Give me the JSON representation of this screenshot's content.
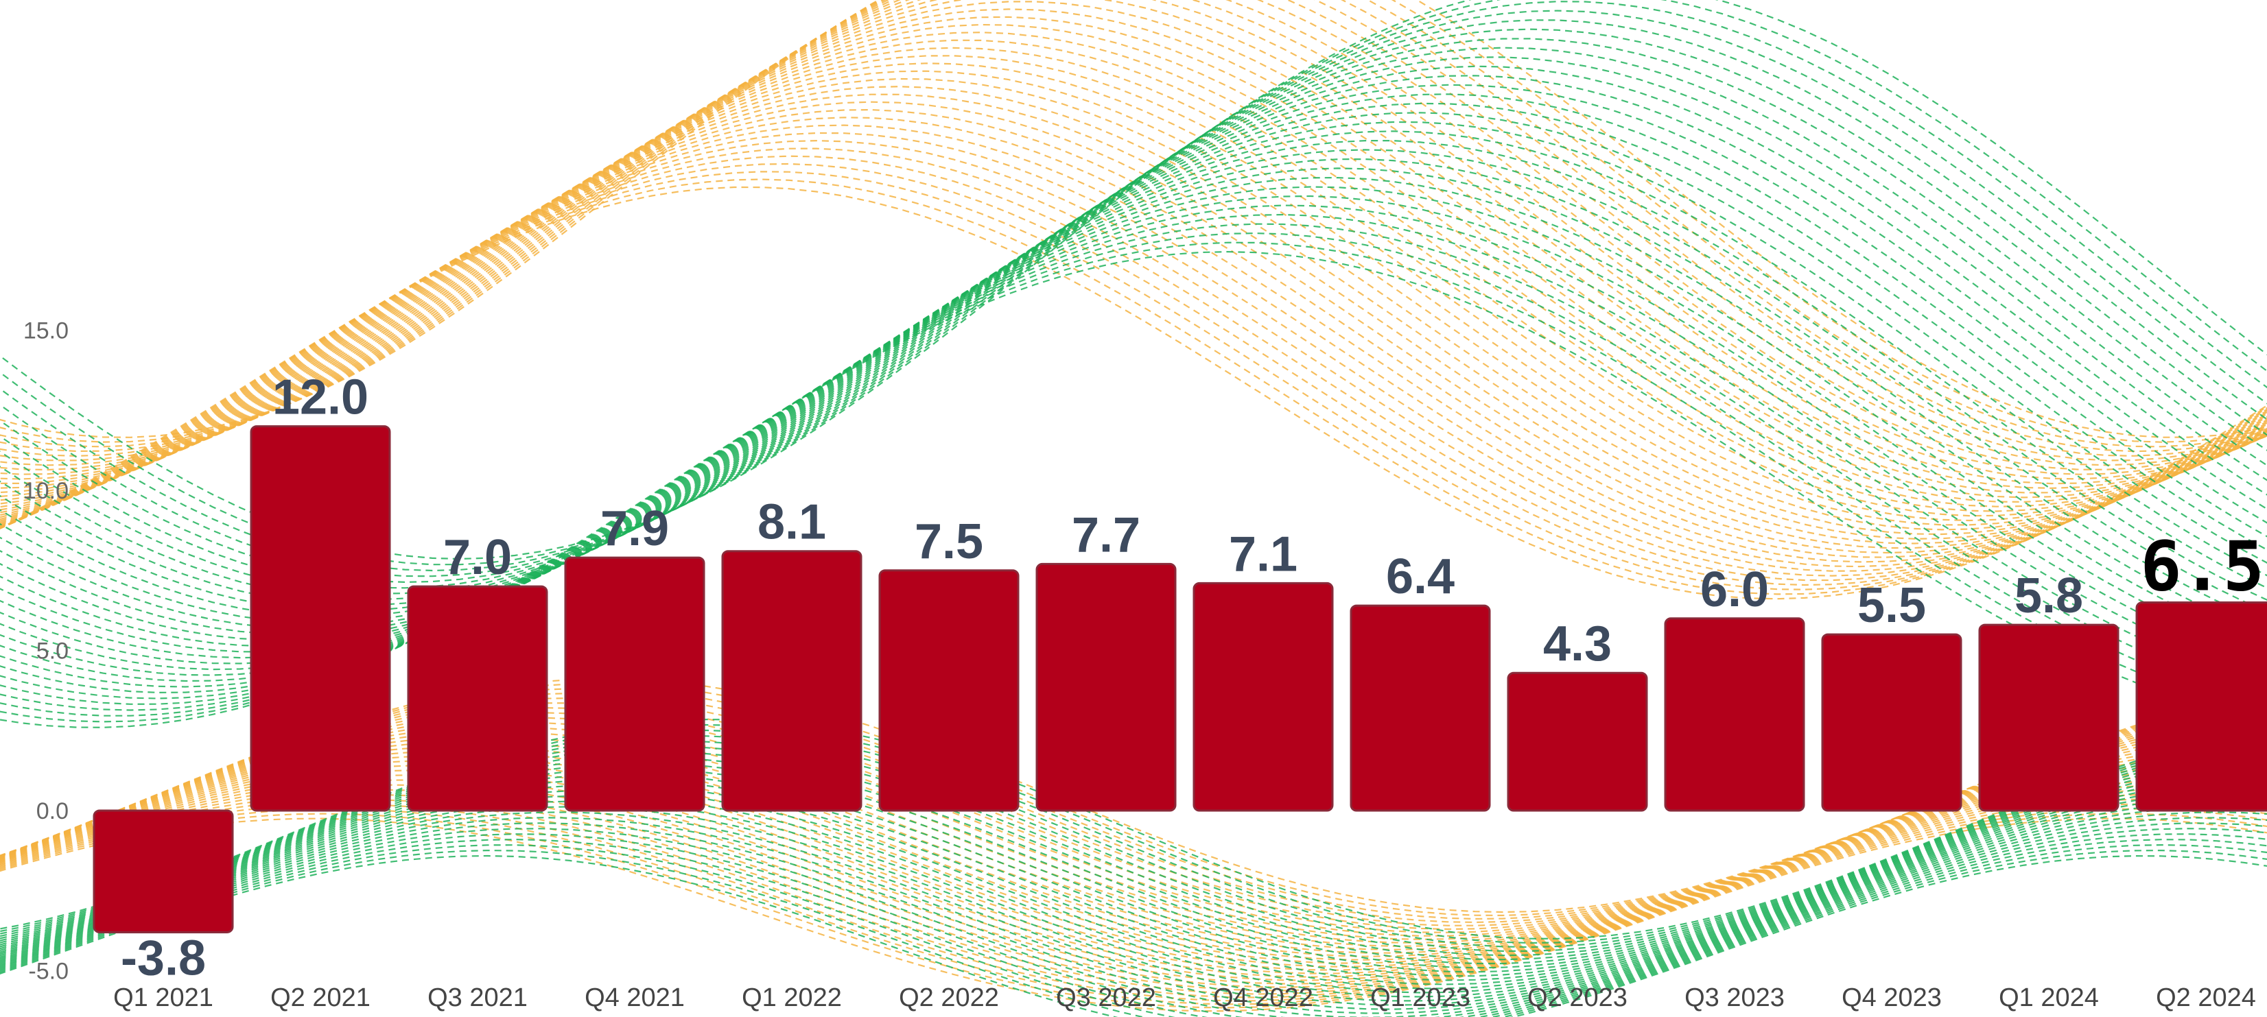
{
  "chart_data": {
    "type": "bar",
    "categories": [
      "Q1 2021",
      "Q2 2021",
      "Q3 2021",
      "Q4 2021",
      "Q1 2022",
      "Q2 2022",
      "Q3 2022",
      "Q4 2022",
      "Q1 2023",
      "Q2 2023",
      "Q3 2023",
      "Q4 2023",
      "Q1 2024",
      "Q2 2024"
    ],
    "values": [
      -3.8,
      12.0,
      7.0,
      7.9,
      8.1,
      7.5,
      7.7,
      7.1,
      6.4,
      4.3,
      6.0,
      5.5,
      5.8,
      6.5
    ],
    "value_labels": [
      "-3.8",
      "12.0",
      "7.0",
      "7.9",
      "8.1",
      "7.5",
      "7.7",
      "7.1",
      "6.4",
      "4.3",
      "6.0",
      "5.5",
      "5.8",
      "6.5"
    ],
    "yticks": [
      "15.0",
      "10.0",
      "5.0",
      "0.0",
      "-5.0"
    ],
    "ytick_values": [
      15,
      10,
      5,
      0,
      -5
    ],
    "ylim": [
      -5,
      15
    ],
    "title": "",
    "xlabel": "",
    "ylabel": "",
    "grid": false,
    "legend": "none",
    "colors": {
      "bar": "#b3001b",
      "bar_border": "#8a2a3a",
      "value_label": "#3d4a5e",
      "tick_label": "#666666",
      "wave_orange": "#f5b342",
      "wave_green": "#1fb25a"
    }
  }
}
